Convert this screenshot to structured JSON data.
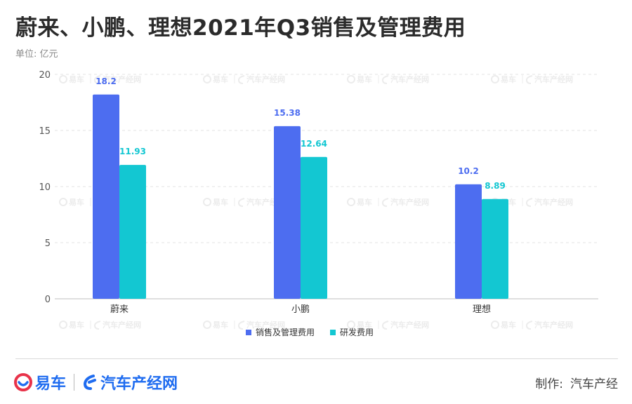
{
  "header": {
    "title": "蔚来、小鹏、理想2021年Q3销售及管理费用",
    "unit_label": "单位: 亿元"
  },
  "watermark": {
    "yiche": "易车",
    "qichechanjing": "汽车产经网"
  },
  "footer": {
    "logo_yiche": "易车",
    "logo_qichechanjing": "汽车产经网",
    "credit_label": "制作:",
    "credit_value": "汽车产经"
  },
  "colors": {
    "series_sales_admin": "#4d6df0",
    "series_rnd": "#13c7d2",
    "brand_blue": "#1f6cf0",
    "brand_red": "#e8334a"
  },
  "chart_data": {
    "type": "bar",
    "categories": [
      "蔚来",
      "小鹏",
      "理想"
    ],
    "series": [
      {
        "name": "销售及管理费用",
        "values": [
          18.2,
          15.38,
          10.2
        ],
        "labels": [
          "18.2",
          "15.38",
          "10.2"
        ]
      },
      {
        "name": "研发费用",
        "values": [
          11.93,
          12.64,
          8.89
        ],
        "labels": [
          "11.93",
          "12.64",
          "8.89"
        ]
      }
    ],
    "yticks": [
      "0",
      "5",
      "10",
      "15",
      "20"
    ],
    "ylim": [
      0,
      20
    ],
    "grid": true,
    "legend_position": "bottom-center"
  }
}
